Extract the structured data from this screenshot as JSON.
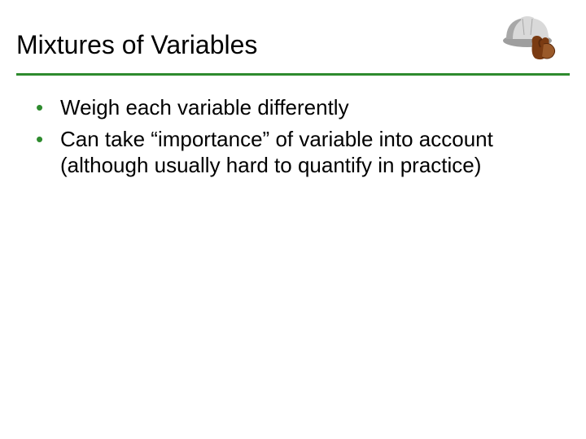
{
  "title": "Mixtures of Variables",
  "rule_color": "#2e8b2e",
  "bullet_color": "#2e8b2e",
  "bullets": [
    "Weigh each variable differently",
    "Can take “importance” of variable into account (although usually hard to quantify in practice)"
  ],
  "icon": {
    "hardhat_shell": "#d9d9d9",
    "hardhat_shadow": "#a8a8a8",
    "hardhat_brim": "#9e9e9e",
    "glove_main": "#7a3b12",
    "glove_dark": "#5a2a0c",
    "glove_light": "#9a5a2a"
  }
}
